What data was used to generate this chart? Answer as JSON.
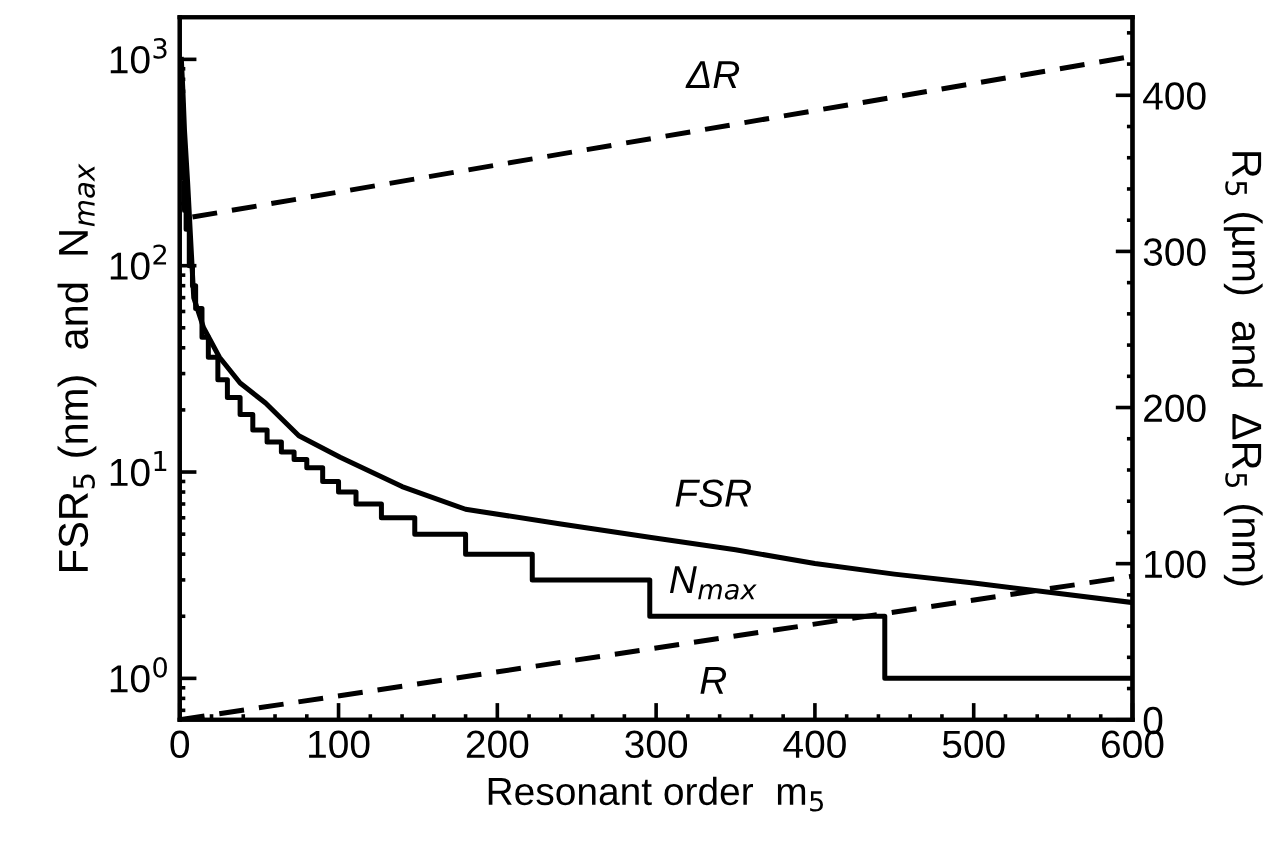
{
  "chart_data": {
    "type": "line",
    "xlabel": "Resonant order  m$_{5}$",
    "ylabel": "FSR$_{5}$ (nm)  and  N$_{max}$",
    "y2label": "R$_{5}$ (µm)  and  ΔR$_{5}$ (nm)",
    "xlim": [
      0,
      600
    ],
    "xticks": [
      0,
      100,
      200,
      300,
      400,
      500,
      600
    ],
    "ylim": [
      0.63,
      1600
    ],
    "yticks": [
      {
        "value": 1,
        "label": "10$^{0}$"
      },
      {
        "value": 10,
        "label": "10$^{1}$"
      },
      {
        "value": 100,
        "label": "10$^{2}$"
      },
      {
        "value": 1000,
        "label": "10$^{3}$"
      }
    ],
    "y2lim": [
      0,
      450
    ],
    "y2ticks": [
      0,
      100,
      200,
      300,
      400
    ],
    "log": "y",
    "grid": false,
    "legend": false,
    "series": [
      {
        "name": "FSR",
        "color": "#000000",
        "line_style": "solid",
        "x": [
          1,
          2,
          3,
          5,
          8.8,
          15,
          25,
          38,
          54,
          75,
          101,
          140,
          180,
          240,
          298,
          350,
          400,
          450,
          500,
          550,
          600
        ],
        "values": [
          1000,
          700,
          450,
          250,
          70,
          50,
          36,
          27,
          21.6,
          15,
          11.8,
          8.5,
          6.6,
          5.6,
          4.8,
          4.2,
          3.6,
          3.2,
          2.9,
          2.6,
          2.33
        ]
      },
      {
        "name": "N$_{max}$",
        "type": "step",
        "color": "#000000",
        "line_style": "solid",
        "x": [
          1,
          2,
          3,
          4,
          6,
          8,
          10,
          14,
          18,
          24,
          30,
          38,
          46,
          55,
          64,
          72,
          80,
          90,
          100,
          111,
          127,
          148,
          180,
          222,
          296,
          444,
          600
        ],
        "values": [
          500,
          266,
          185,
          150,
          100,
          80,
          62,
          45,
          36,
          28,
          23,
          19,
          16,
          14,
          12.5,
          11.5,
          10.5,
          9,
          8,
          7,
          6,
          5,
          4,
          3,
          2,
          1,
          1
        ]
      },
      {
        "name": "R",
        "axis": "y2",
        "color": "#000000",
        "line_style": "dashed",
        "x": [
          0,
          600
        ],
        "values": [
          0,
          92
        ]
      },
      {
        "name": "ΔR",
        "axis": "y2",
        "color": "#000000",
        "line_style": "dashed",
        "x": [
          8,
          600
        ],
        "values": [
          322,
          425
        ]
      }
    ]
  }
}
